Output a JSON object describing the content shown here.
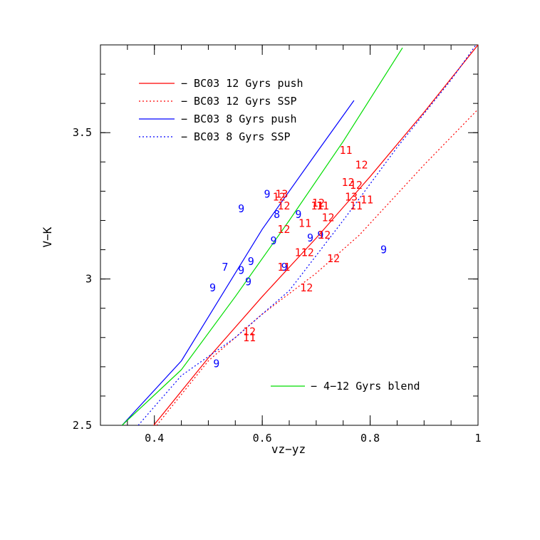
{
  "chart_data": {
    "type": "scatter",
    "xlabel": "vz−yz",
    "ylabel": "V−K",
    "xlim": [
      0.3,
      1.0
    ],
    "ylim": [
      2.5,
      3.8
    ],
    "x_ticks": [
      {
        "value": 0.4,
        "label": "0.4"
      },
      {
        "value": 0.6,
        "label": "0.6"
      },
      {
        "value": 0.8,
        "label": "0.8"
      },
      {
        "value": 1.0,
        "label": "1"
      }
    ],
    "y_ticks": [
      {
        "value": 2.5,
        "label": "2.5"
      },
      {
        "value": 3.0,
        "label": "3"
      },
      {
        "value": 3.5,
        "label": "3.5"
      }
    ],
    "x_minor_step": 0.05,
    "y_minor_step": 0.1,
    "grid": false,
    "colors": {
      "red": "#ff0000",
      "blue": "#0000ff",
      "green": "#00dd00",
      "axis": "#000000"
    },
    "series": [
      {
        "name": "BC03 12 Gyrs push",
        "color": "red",
        "style": "solid",
        "x": [
          0.39,
          0.5,
          0.6,
          0.7,
          0.8,
          0.9,
          1.0
        ],
        "y": [
          2.48,
          2.73,
          2.94,
          3.14,
          3.35,
          3.57,
          3.8
        ]
      },
      {
        "name": "BC03 12 Gyrs SSP",
        "color": "red",
        "style": "dotted",
        "x": [
          0.4,
          0.5,
          0.6,
          0.7,
          0.78,
          0.9,
          1.0
        ],
        "y": [
          2.49,
          2.72,
          2.88,
          3.02,
          3.15,
          3.39,
          3.58
        ]
      },
      {
        "name": "BC03 8 Gyrs push",
        "color": "blue",
        "style": "solid",
        "x": [
          0.34,
          0.45,
          0.51,
          0.6,
          0.7,
          0.77
        ],
        "y": [
          2.5,
          2.72,
          2.9,
          3.17,
          3.43,
          3.61
        ]
      },
      {
        "name": "BC03 8 Gyrs SSP",
        "color": "blue",
        "style": "dotted",
        "x": [
          0.37,
          0.45,
          0.55,
          0.65,
          0.75,
          0.85,
          0.95,
          1.0
        ],
        "y": [
          2.5,
          2.67,
          2.8,
          2.96,
          3.2,
          3.45,
          3.68,
          3.81
        ]
      },
      {
        "name": "4-12 Gyrs blend",
        "color": "green",
        "style": "solid",
        "x": [
          0.34,
          0.45,
          0.55,
          0.65,
          0.75,
          0.86
        ],
        "y": [
          2.5,
          2.69,
          2.94,
          3.2,
          3.47,
          3.79
        ]
      }
    ],
    "legend": {
      "placement": "top-left",
      "entries": [
        {
          "label": "− BC03 12 Gyrs push",
          "series": 0
        },
        {
          "label": "− BC03 12 Gyrs SSP",
          "series": 1
        },
        {
          "label": "− BC03 8 Gyrs push",
          "series": 2
        },
        {
          "label": "− BC03 8 Gyrs SSP",
          "series": 3
        }
      ],
      "extra_entry": {
        "label": "− 4−12 Gyrs blend",
        "series": 4,
        "placement": "bottom-right"
      }
    },
    "points": [
      {
        "x": 0.515,
        "y": 2.71,
        "label": "9",
        "color": "blue"
      },
      {
        "x": 0.508,
        "y": 2.97,
        "label": "9",
        "color": "blue"
      },
      {
        "x": 0.531,
        "y": 3.04,
        "label": "7",
        "color": "blue"
      },
      {
        "x": 0.561,
        "y": 3.03,
        "label": "9",
        "color": "blue"
      },
      {
        "x": 0.574,
        "y": 2.99,
        "label": "9",
        "color": "blue"
      },
      {
        "x": 0.579,
        "y": 3.06,
        "label": "9",
        "color": "blue"
      },
      {
        "x": 0.561,
        "y": 3.24,
        "label": "9",
        "color": "blue"
      },
      {
        "x": 0.609,
        "y": 3.29,
        "label": "9",
        "color": "blue"
      },
      {
        "x": 0.621,
        "y": 3.13,
        "label": "9",
        "color": "blue"
      },
      {
        "x": 0.627,
        "y": 3.22,
        "label": "8",
        "color": "blue"
      },
      {
        "x": 0.641,
        "y": 3.04,
        "label": "9",
        "color": "blue"
      },
      {
        "x": 0.667,
        "y": 3.22,
        "label": "9",
        "color": "blue"
      },
      {
        "x": 0.689,
        "y": 3.14,
        "label": "9",
        "color": "blue"
      },
      {
        "x": 0.708,
        "y": 3.15,
        "label": "9",
        "color": "blue"
      },
      {
        "x": 0.825,
        "y": 3.1,
        "label": "9",
        "color": "blue"
      },
      {
        "x": 0.576,
        "y": 2.82,
        "label": "12",
        "color": "red"
      },
      {
        "x": 0.576,
        "y": 2.8,
        "label": "11",
        "color": "red"
      },
      {
        "x": 0.64,
        "y": 3.04,
        "label": "11",
        "color": "red"
      },
      {
        "x": 0.636,
        "y": 3.29,
        "label": "13",
        "color": "red"
      },
      {
        "x": 0.631,
        "y": 3.28,
        "label": "12",
        "color": "red"
      },
      {
        "x": 0.64,
        "y": 3.25,
        "label": "12",
        "color": "red"
      },
      {
        "x": 0.64,
        "y": 3.17,
        "label": "12",
        "color": "red"
      },
      {
        "x": 0.672,
        "y": 3.09,
        "label": "11",
        "color": "red"
      },
      {
        "x": 0.684,
        "y": 3.09,
        "label": "12",
        "color": "red"
      },
      {
        "x": 0.679,
        "y": 3.19,
        "label": "11",
        "color": "red"
      },
      {
        "x": 0.704,
        "y": 3.26,
        "label": "12",
        "color": "red"
      },
      {
        "x": 0.702,
        "y": 3.25,
        "label": "11",
        "color": "red"
      },
      {
        "x": 0.712,
        "y": 3.25,
        "label": "11",
        "color": "red"
      },
      {
        "x": 0.715,
        "y": 3.15,
        "label": "12",
        "color": "red"
      },
      {
        "x": 0.722,
        "y": 3.21,
        "label": "12",
        "color": "red"
      },
      {
        "x": 0.682,
        "y": 2.97,
        "label": "12",
        "color": "red"
      },
      {
        "x": 0.732,
        "y": 3.07,
        "label": "12",
        "color": "red"
      },
      {
        "x": 0.755,
        "y": 3.44,
        "label": "11",
        "color": "red"
      },
      {
        "x": 0.784,
        "y": 3.39,
        "label": "12",
        "color": "red"
      },
      {
        "x": 0.759,
        "y": 3.33,
        "label": "12",
        "color": "red"
      },
      {
        "x": 0.774,
        "y": 3.32,
        "label": "12",
        "color": "red"
      },
      {
        "x": 0.765,
        "y": 3.28,
        "label": "13",
        "color": "red"
      },
      {
        "x": 0.774,
        "y": 3.25,
        "label": "11",
        "color": "red"
      },
      {
        "x": 0.794,
        "y": 3.27,
        "label": "11",
        "color": "red"
      }
    ]
  }
}
